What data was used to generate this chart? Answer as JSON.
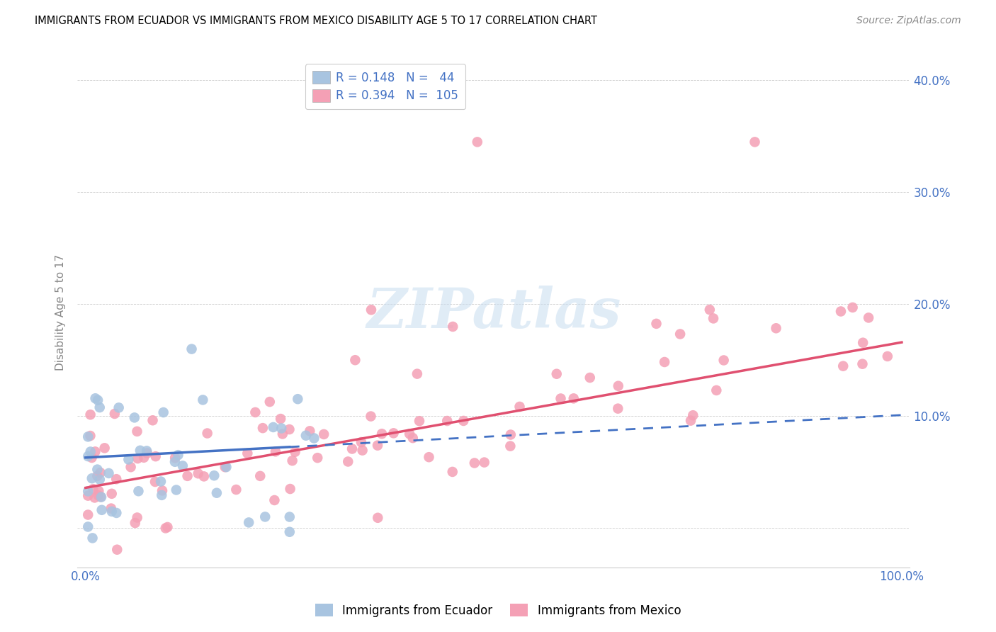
{
  "title": "IMMIGRANTS FROM ECUADOR VS IMMIGRANTS FROM MEXICO DISABILITY AGE 5 TO 17 CORRELATION CHART",
  "source": "Source: ZipAtlas.com",
  "ylabel": "Disability Age 5 to 17",
  "xlim": [
    -1.0,
    101.0
  ],
  "ylim": [
    -3.5,
    42.0
  ],
  "xticks": [
    0.0,
    20.0,
    40.0,
    60.0,
    80.0,
    100.0
  ],
  "yticks": [
    0.0,
    10.0,
    20.0,
    30.0,
    40.0
  ],
  "xtick_labels": [
    "0.0%",
    "",
    "",
    "",
    "",
    "100.0%"
  ],
  "ytick_labels": [
    "",
    "10.0%",
    "20.0%",
    "30.0%",
    "40.0%"
  ],
  "ecuador_color": "#a8c4e0",
  "mexico_color": "#f4a0b5",
  "ecuador_line_color": "#4472c4",
  "mexico_line_color": "#e05070",
  "R_ecuador": 0.148,
  "N_ecuador": 44,
  "R_mexico": 0.394,
  "N_mexico": 105,
  "tick_color": "#4472c4",
  "watermark_color": "#c8ddf0",
  "grid_color": "#cccccc",
  "ecuador_trend_start_x": 0.0,
  "ecuador_trend_end_solid_x": 25.0,
  "ecuador_trend_end_x": 100.0,
  "ecuador_trend_start_y": 6.2,
  "ecuador_trend_slope": 0.04,
  "mexico_trend_start_y": 3.8,
  "mexico_trend_slope": 0.135
}
